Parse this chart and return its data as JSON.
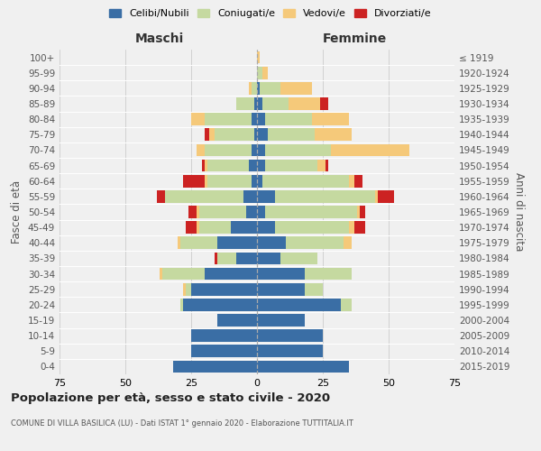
{
  "age_groups": [
    "0-4",
    "5-9",
    "10-14",
    "15-19",
    "20-24",
    "25-29",
    "30-34",
    "35-39",
    "40-44",
    "45-49",
    "50-54",
    "55-59",
    "60-64",
    "65-69",
    "70-74",
    "75-79",
    "80-84",
    "85-89",
    "90-94",
    "95-99",
    "100+"
  ],
  "birth_years": [
    "2015-2019",
    "2010-2014",
    "2005-2009",
    "2000-2004",
    "1995-1999",
    "1990-1994",
    "1985-1989",
    "1980-1984",
    "1975-1979",
    "1970-1974",
    "1965-1969",
    "1960-1964",
    "1955-1959",
    "1950-1954",
    "1945-1949",
    "1940-1944",
    "1935-1939",
    "1930-1934",
    "1925-1929",
    "1920-1924",
    "≤ 1919"
  ],
  "colors": {
    "celibi": "#3a6ea5",
    "coniugati": "#c5d9a0",
    "vedovi": "#f5c97a",
    "divorziati": "#cc2222"
  },
  "males": {
    "celibi": [
      32,
      25,
      25,
      15,
      28,
      25,
      20,
      8,
      15,
      10,
      4,
      5,
      2,
      3,
      2,
      1,
      2,
      1,
      0,
      0,
      0
    ],
    "coniugati": [
      0,
      0,
      0,
      0,
      1,
      2,
      16,
      7,
      14,
      12,
      18,
      30,
      17,
      16,
      18,
      15,
      18,
      7,
      2,
      0,
      0
    ],
    "vedovi": [
      0,
      0,
      0,
      0,
      0,
      1,
      1,
      0,
      1,
      1,
      1,
      0,
      1,
      1,
      3,
      2,
      5,
      0,
      1,
      0,
      0
    ],
    "divorziati": [
      0,
      0,
      0,
      0,
      0,
      0,
      0,
      1,
      0,
      4,
      3,
      3,
      8,
      1,
      0,
      2,
      0,
      0,
      0,
      0,
      0
    ]
  },
  "females": {
    "celibi": [
      35,
      25,
      25,
      18,
      32,
      18,
      18,
      9,
      11,
      7,
      3,
      7,
      2,
      3,
      3,
      4,
      3,
      2,
      1,
      0,
      0
    ],
    "coniugati": [
      0,
      0,
      0,
      0,
      4,
      7,
      18,
      14,
      22,
      28,
      35,
      38,
      33,
      20,
      25,
      18,
      18,
      10,
      8,
      2,
      0
    ],
    "vedovi": [
      0,
      0,
      0,
      0,
      0,
      0,
      0,
      0,
      3,
      2,
      1,
      1,
      2,
      3,
      30,
      14,
      14,
      12,
      12,
      2,
      1
    ],
    "divorziati": [
      0,
      0,
      0,
      0,
      0,
      0,
      0,
      0,
      0,
      4,
      2,
      6,
      3,
      1,
      0,
      0,
      0,
      3,
      0,
      0,
      0
    ]
  },
  "title": "Popolazione per età, sesso e stato civile - 2020",
  "subtitle": "COMUNE DI VILLA BASILICA (LU) - Dati ISTAT 1° gennaio 2020 - Elaborazione TUTTITALIA.IT",
  "ylabel_left": "Fasce di età",
  "ylabel_right": "Anni di nascita",
  "xlabel_left": "Maschi",
  "xlabel_right": "Femmine",
  "xlim": 75,
  "legend_labels": [
    "Celibi/Nubili",
    "Coniugati/e",
    "Vedovi/e",
    "Divorziati/e"
  ],
  "bg_color": "#f0f0f0",
  "grid_color": "#cccccc"
}
